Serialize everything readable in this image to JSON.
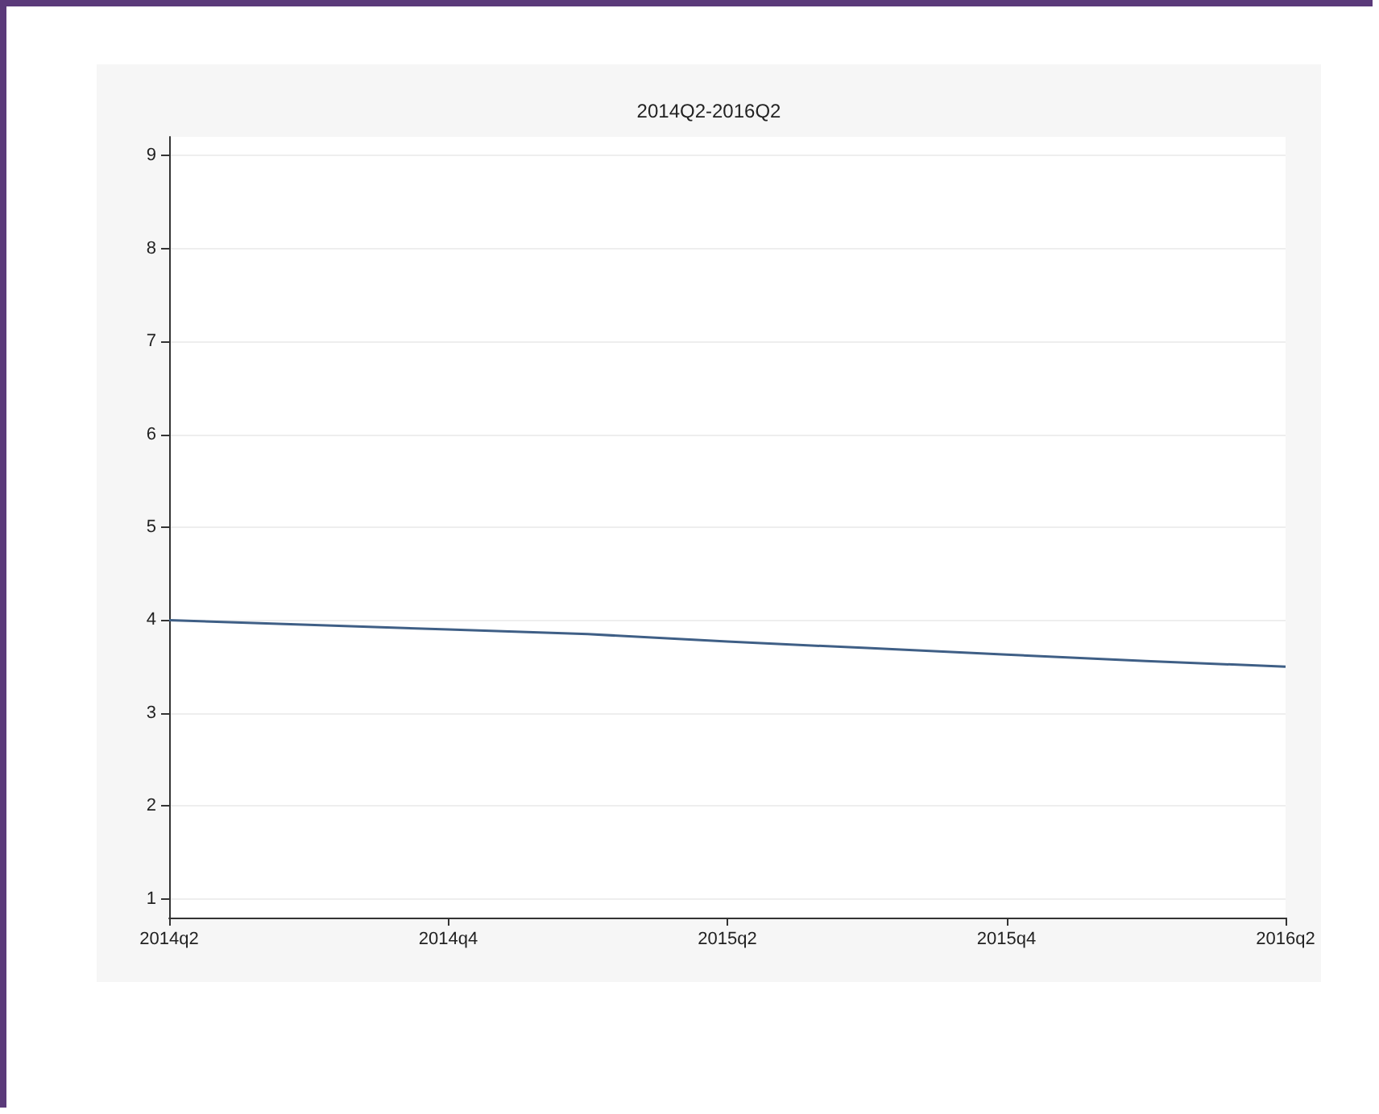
{
  "chart_data": {
    "type": "line",
    "title": "2014Q2-2016Q2",
    "categories": [
      "2014q2",
      null,
      "2014q4",
      null,
      "2015q2",
      null,
      "2015q4",
      null,
      "2016q2"
    ],
    "series": [
      {
        "color": "#3f5f86",
        "values": [
          4.0,
          3.95,
          3.9,
          3.85,
          3.77,
          3.7,
          3.63,
          3.56,
          3.5
        ]
      }
    ],
    "ylim": [
      0.8,
      9.2
    ],
    "yticks": [
      1,
      2,
      3,
      4,
      5,
      6,
      7,
      8,
      9
    ],
    "grid": "y",
    "marker": "none",
    "line_style": "solid"
  }
}
